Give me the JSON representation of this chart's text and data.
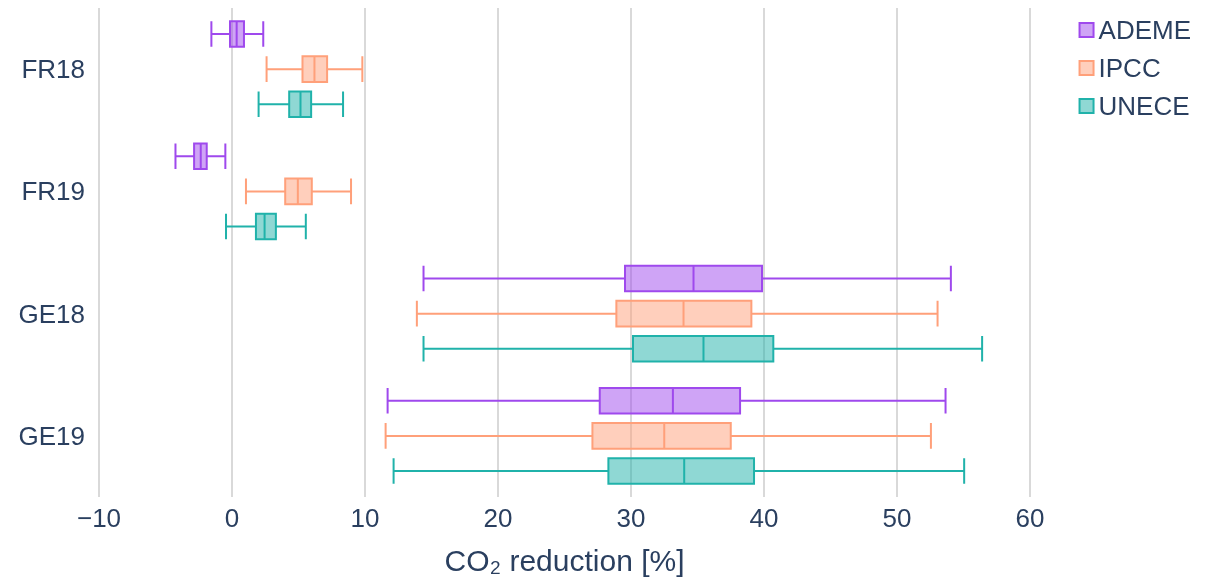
{
  "chart_data": {
    "type": "box",
    "orientation": "horizontal",
    "xlabel": "CO₂ reduction [%]",
    "categories": [
      "FR18",
      "FR19",
      "GE18",
      "GE19"
    ],
    "xlim": [
      -10,
      60
    ],
    "xticks": [
      {
        "value": -10,
        "label": "−10"
      },
      0,
      10,
      20,
      30,
      40,
      50,
      60
    ],
    "grid": "x",
    "legend": "top right",
    "series": [
      {
        "name": "ADEME",
        "color": "#9f49ed",
        "boxes": [
          {
            "low": -1.55,
            "q1": -0.15,
            "median": 0.35,
            "q3": 0.9,
            "high": 2.35
          },
          {
            "low": -4.25,
            "q1": -2.85,
            "median": -2.35,
            "q3": -1.9,
            "high": -0.5
          },
          {
            "low": 14.4,
            "q1": 29.55,
            "median": 34.7,
            "q3": 39.85,
            "high": 54.05
          },
          {
            "low": 11.7,
            "q1": 27.65,
            "median": 33.15,
            "q3": 38.2,
            "high": 53.65
          }
        ]
      },
      {
        "name": "IPCC",
        "color": "#ffa07a",
        "boxes": [
          {
            "low": 2.6,
            "q1": 5.3,
            "median": 6.2,
            "q3": 7.15,
            "high": 9.8
          },
          {
            "low": 1.05,
            "q1": 4.0,
            "median": 4.95,
            "q3": 6.0,
            "high": 8.95
          },
          {
            "low": 13.9,
            "q1": 28.9,
            "median": 33.95,
            "q3": 39.05,
            "high": 53.05
          },
          {
            "low": 11.55,
            "q1": 27.1,
            "median": 32.5,
            "q3": 37.5,
            "high": 52.55
          }
        ]
      },
      {
        "name": "UNECE",
        "color": "#20b2aa",
        "boxes": [
          {
            "low": 2.0,
            "q1": 4.3,
            "median": 5.15,
            "q3": 5.95,
            "high": 8.35
          },
          {
            "low": -0.45,
            "q1": 1.8,
            "median": 2.45,
            "q3": 3.3,
            "high": 5.55
          },
          {
            "low": 14.4,
            "q1": 30.15,
            "median": 35.45,
            "q3": 40.7,
            "high": 56.4
          },
          {
            "low": 12.15,
            "q1": 28.3,
            "median": 34.0,
            "q3": 39.25,
            "high": 55.05
          }
        ]
      }
    ]
  }
}
